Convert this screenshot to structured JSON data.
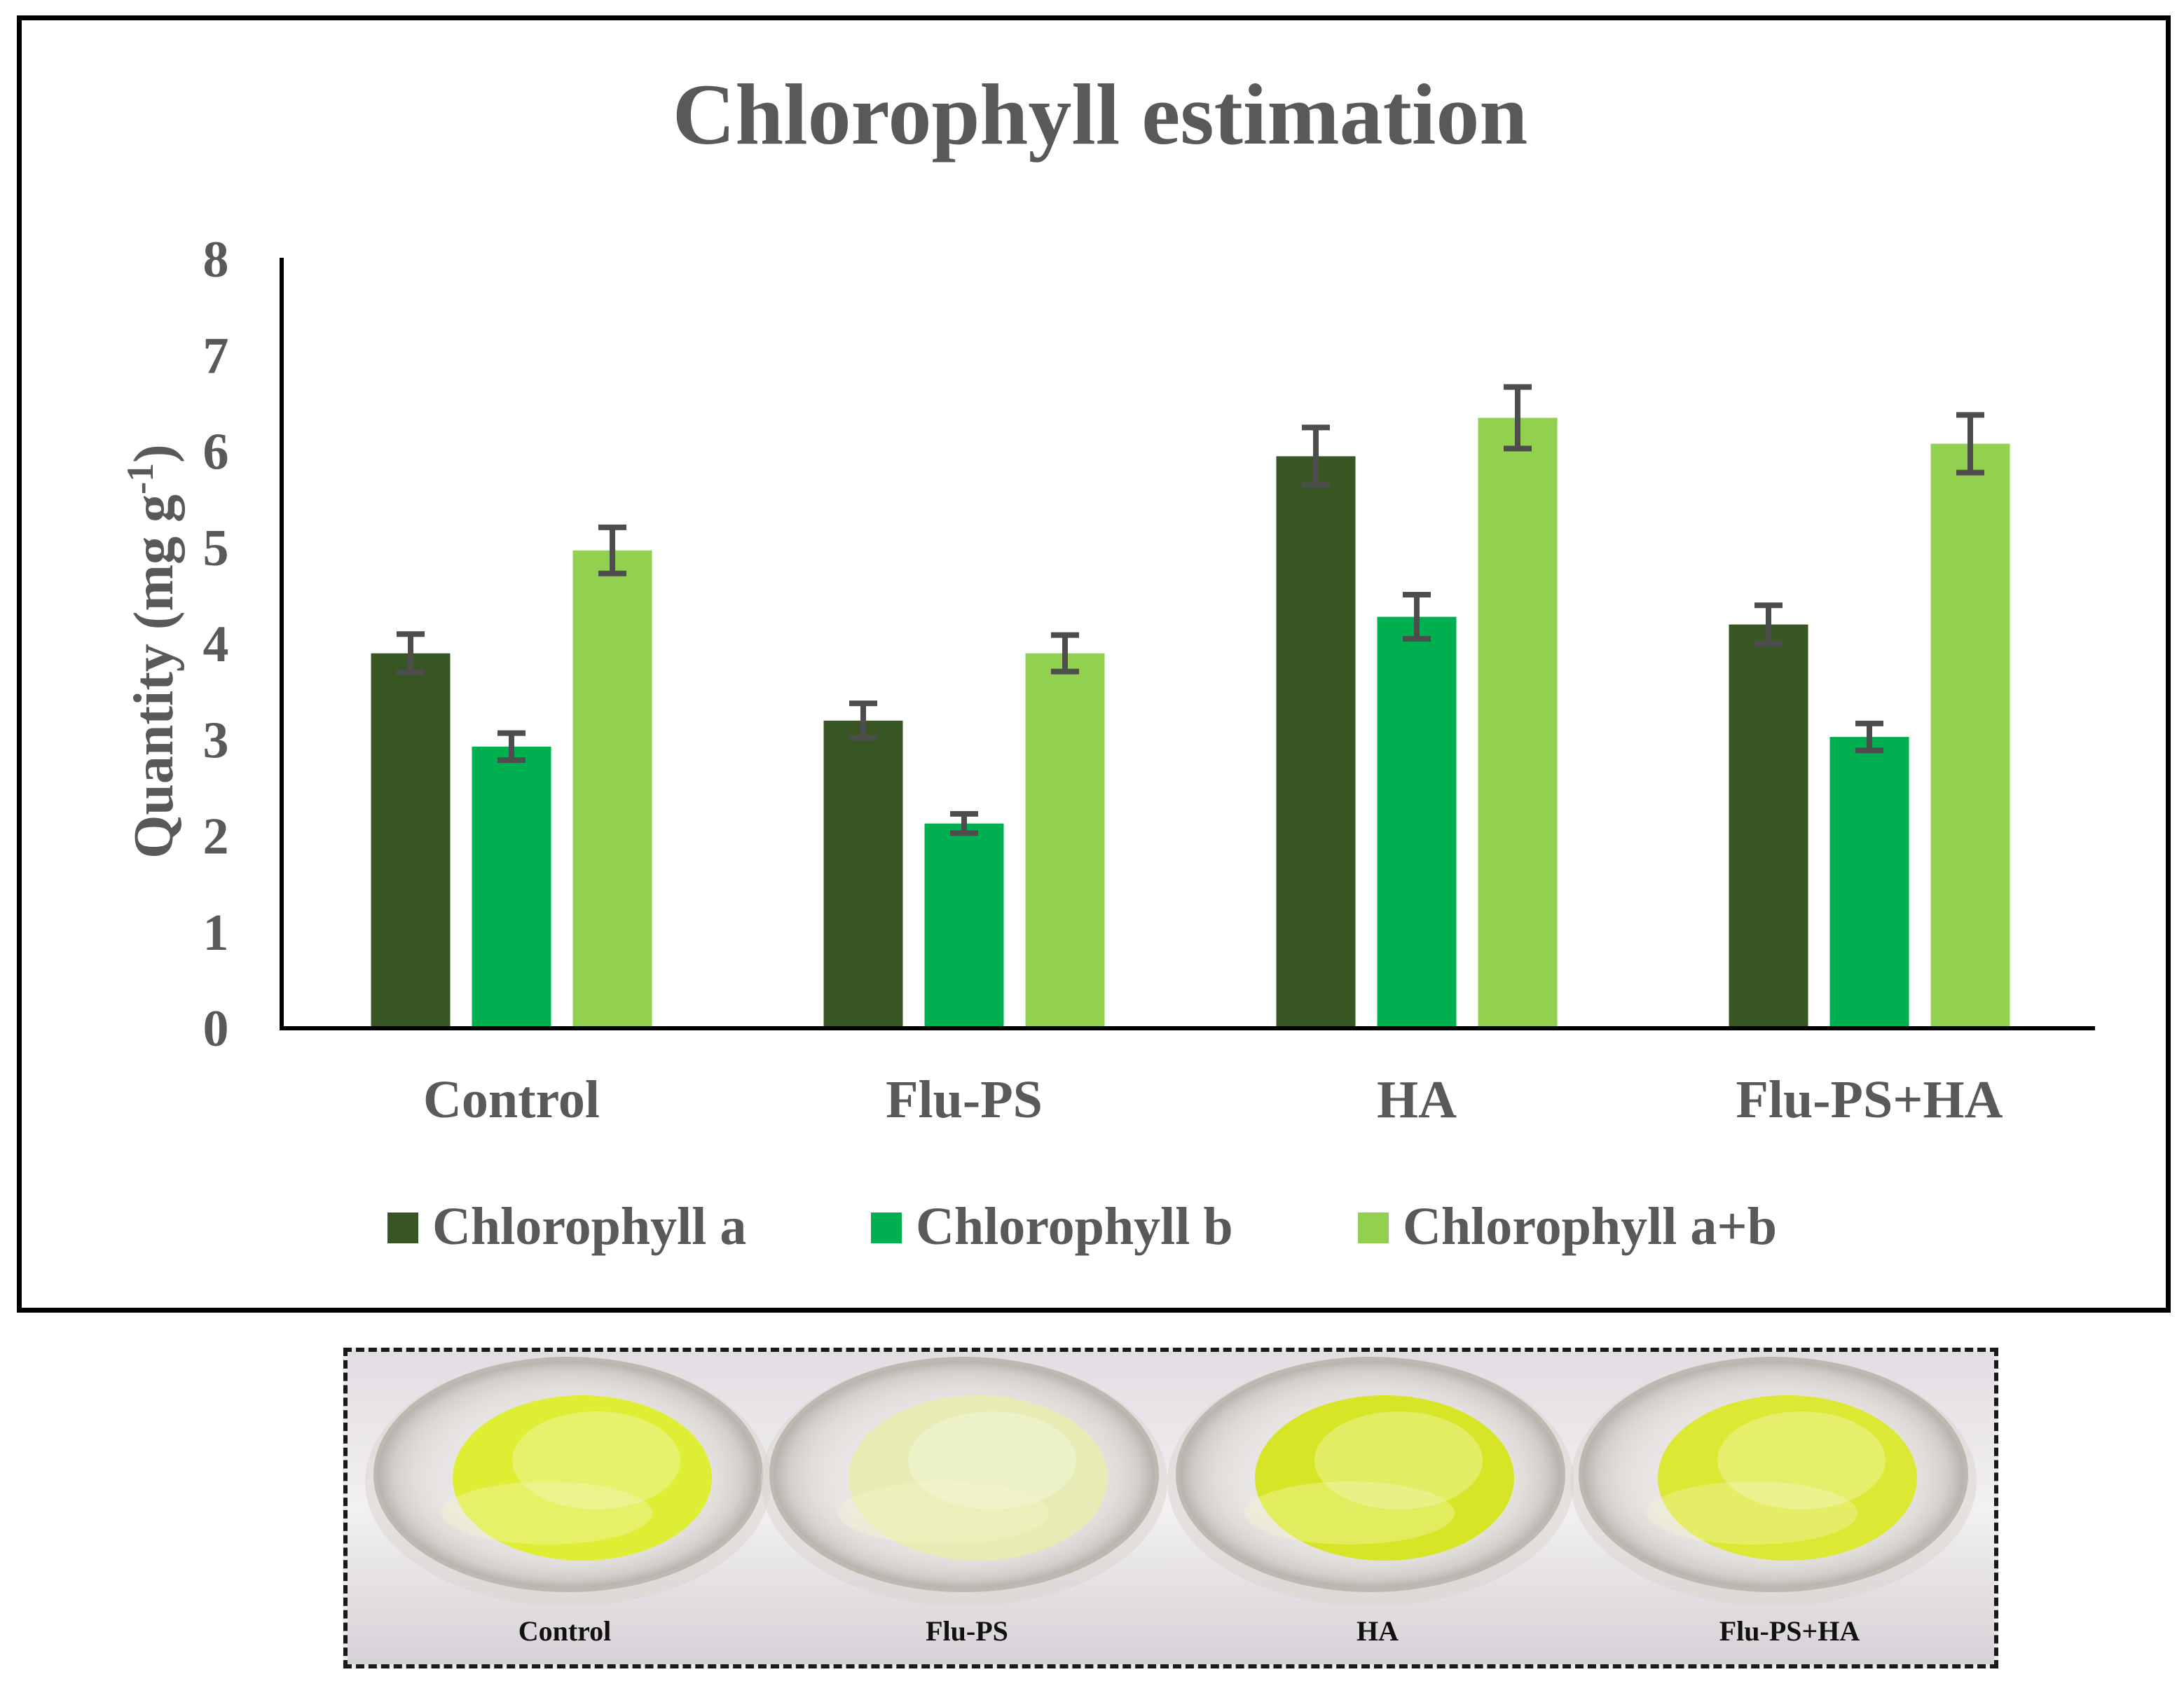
{
  "chart_data": {
    "type": "bar",
    "title": "Chlorophyll estimation",
    "xlabel": "",
    "ylabel": "Quantity (mg g -1)",
    "ylabel_parts": {
      "base": "Quantity (mg g",
      "sup": "-1",
      "close": ")"
    },
    "ylim": [
      0,
      8
    ],
    "yticks": [
      "0",
      "1",
      "2",
      "3",
      "4",
      "5",
      "6",
      "7",
      "8"
    ],
    "grid": false,
    "legend_position": "bottom",
    "categories": [
      "Control",
      "Flu-PS",
      "HA",
      "Flu-PS+HA"
    ],
    "series": [
      {
        "name": "Chlorophyll a",
        "color": "#375623",
        "values": [
          3.9,
          3.2,
          5.95,
          4.2
        ],
        "errors": [
          0.2,
          0.18,
          0.3,
          0.2
        ]
      },
      {
        "name": "Chlorophyll b",
        "color": "#00b050",
        "values": [
          2.93,
          2.13,
          4.28,
          3.03
        ],
        "errors": [
          0.14,
          0.1,
          0.23,
          0.14
        ]
      },
      {
        "name": "Chlorophyll a+b",
        "color": "#92d050",
        "values": [
          4.97,
          3.9,
          6.35,
          6.08
        ],
        "errors": [
          0.24,
          0.19,
          0.32,
          0.3
        ]
      }
    ],
    "error_bar_color": "#4d4d4d"
  },
  "photo": {
    "labels": [
      "Control",
      "Flu-PS",
      "HA",
      "Flu-PS+HA"
    ],
    "liquid_colors": [
      "#dcee2a",
      "#e6ecb0",
      "#d5e61c",
      "#dbe92a"
    ]
  },
  "colors": {
    "axis": "#000000",
    "text": "#595959"
  }
}
